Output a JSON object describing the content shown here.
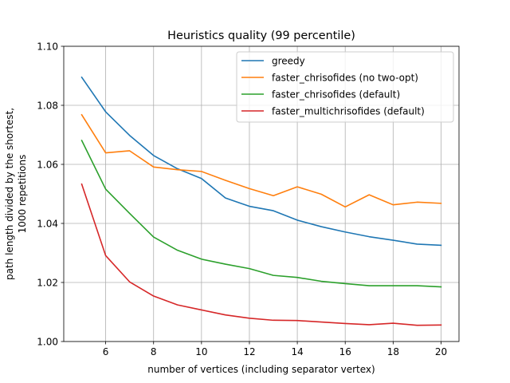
{
  "chart_data": {
    "type": "line",
    "title": "Heuristics quality (99 percentile)",
    "xlabel": "number of vertices (including separator vertex)",
    "ylabel_lines": [
      "path length divided by the shortest,",
      "1000 repetitions"
    ],
    "xlim": [
      4.25,
      20.75
    ],
    "ylim": [
      1.0,
      1.1
    ],
    "x_ticks": [
      6,
      8,
      10,
      12,
      14,
      16,
      18,
      20
    ],
    "y_ticks": [
      1.0,
      1.02,
      1.04,
      1.06,
      1.08,
      1.1
    ],
    "x_tick_labels": [
      "6",
      "8",
      "10",
      "12",
      "14",
      "16",
      "18",
      "20"
    ],
    "y_tick_labels": [
      "1.00",
      "1.02",
      "1.04",
      "1.06",
      "1.08",
      "1.10"
    ],
    "grid": true,
    "legend_position": "top-right",
    "x": [
      5,
      6,
      7,
      8,
      9,
      10,
      11,
      12,
      13,
      14,
      15,
      16,
      17,
      18,
      19,
      20
    ],
    "series": [
      {
        "name": "greedy",
        "color": "#1f77b4",
        "values": [
          1.0895,
          1.0778,
          1.0698,
          1.063,
          1.0585,
          1.0552,
          1.0486,
          1.0458,
          1.0443,
          1.0411,
          1.0389,
          1.0371,
          1.0355,
          1.0343,
          1.033,
          1.0326
        ]
      },
      {
        "name": "faster_chrisofides (no two-opt)",
        "color": "#ff7f0e",
        "values": [
          1.0768,
          1.0639,
          1.0646,
          1.0591,
          1.0582,
          1.0576,
          1.0546,
          1.0518,
          1.0494,
          1.0524,
          1.0499,
          1.0456,
          1.0497,
          1.0463,
          1.0472,
          1.0468
        ]
      },
      {
        "name": "faster_chrisofides (default)",
        "color": "#2ca02c",
        "values": [
          1.0681,
          1.0516,
          1.0434,
          1.0354,
          1.0309,
          1.0279,
          1.0262,
          1.0247,
          1.0224,
          1.0217,
          1.0204,
          1.0196,
          1.0189,
          1.0189,
          1.0189,
          1.0185
        ]
      },
      {
        "name": "faster_multichrisofides (default)",
        "color": "#d62728",
        "values": [
          1.0533,
          1.0291,
          1.0202,
          1.0154,
          1.0124,
          1.0107,
          1.009,
          1.0079,
          1.0072,
          1.0071,
          1.0066,
          1.0061,
          1.0057,
          1.0062,
          1.0055,
          1.0056
        ]
      }
    ]
  }
}
